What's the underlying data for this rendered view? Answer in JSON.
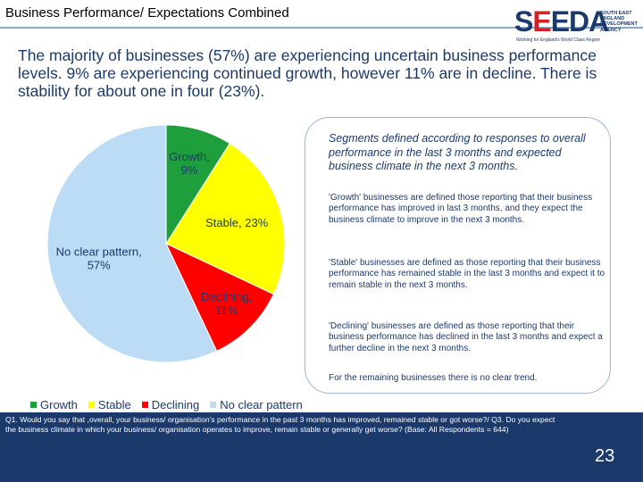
{
  "header": {
    "title": "Business Performance/ Expectations Combined"
  },
  "logo": {
    "word_s": "S",
    "word_e": "E",
    "word_rest": "EDA",
    "tagline": "Working for England's World Class Region",
    "agency_lines": [
      "SOUTH EAST",
      "ENGLAND",
      "DEVELOPMENT",
      "AGENCY"
    ]
  },
  "intro": "The majority of businesses (57%) are experiencing uncertain business performance levels. 9% are experiencing continued growth, however 11% are in decline. There is stability for about one in four (23%).",
  "chart_data": {
    "type": "pie",
    "title": "",
    "categories": [
      "Growth",
      "Stable",
      "Declining",
      "No clear pattern"
    ],
    "values": [
      9,
      23,
      11,
      57
    ],
    "units": "%",
    "colors": [
      "#1f9e3c",
      "#ffff00",
      "#ff0000",
      "#bcdcf5"
    ],
    "slice_labels": [
      "Growth,\n9%",
      "Stable, 23%",
      "Declining,\n11%",
      "No clear pattern,\n57%"
    ],
    "legend": [
      "Growth",
      "Stable",
      "Declining",
      "No clear pattern"
    ],
    "legend_position": "bottom"
  },
  "callout": {
    "heading": "Segments defined according to responses to overall performance in the last 3 months and expected business climate in the next 3 months.",
    "growth": "'Growth' businesses are defined those reporting that their business performance has improved in last 3 months, and they expect  the business climate to improve in the next 3 months.",
    "stable": "'Stable' businesses are defined as those reporting that their business performance has remained stable in the last 3 months and expect it to remain stable in the next 3 months.",
    "declining": "'Declining' businesses are defined as those reporting that their business performance has declined in the last 3 months and expect a further decline in the next 3 months.",
    "remaining": "For the remaining businesses there is no clear trend."
  },
  "footer": {
    "question": "Q1. Would you say that ,overall, your business/ organisation's performance in the past 3 months has improved, remained stable or got worse?/ Q3. Do you expect the business climate in which your business/ organisation operates to improve, remain stable or generally get worse? (Base: All Respondents = 644)",
    "page_number": "23"
  }
}
